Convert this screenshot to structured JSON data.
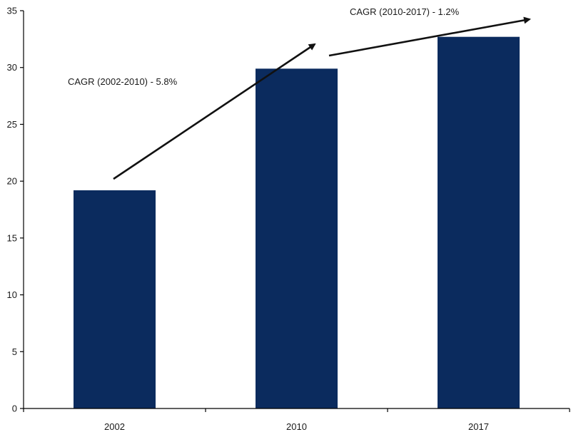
{
  "chart_data": {
    "type": "bar",
    "categories": [
      "2002",
      "2010",
      "2017"
    ],
    "values": [
      19.2,
      29.9,
      32.7
    ],
    "ylim": [
      0,
      35
    ],
    "yticks": [
      0,
      5,
      10,
      15,
      20,
      25,
      30,
      35
    ],
    "grid": false,
    "title": "",
    "xlabel": "",
    "ylabel": "",
    "bar_color": "#0b2b5e",
    "annotations": [
      {
        "text": "CAGR (2002-2010) - 5.8%",
        "from": "2002",
        "to": "2010"
      },
      {
        "text": "CAGR (2010-2017) - 1.2%",
        "from": "2010",
        "to": "2017"
      }
    ]
  }
}
